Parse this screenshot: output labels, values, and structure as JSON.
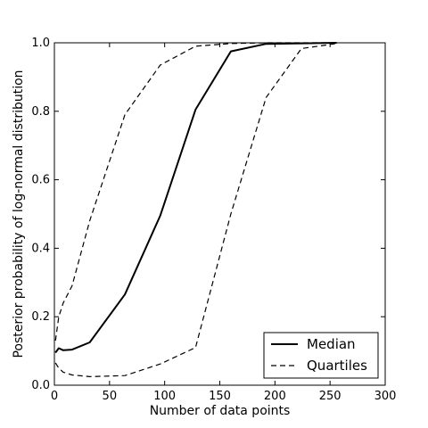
{
  "chart_data": {
    "type": "line",
    "xlabel": "Number of data points",
    "ylabel": "Posterior probability of log-normal distribution",
    "xlim": [
      0,
      300
    ],
    "ylim": [
      0,
      1.0
    ],
    "x_ticks": [
      0,
      50,
      100,
      150,
      200,
      250,
      300
    ],
    "x_tick_labels": [
      "0",
      "50",
      "100",
      "150",
      "200",
      "250",
      "300"
    ],
    "y_ticks": [
      0.0,
      0.2,
      0.4,
      0.6,
      0.8,
      1.0
    ],
    "y_tick_labels": [
      "0.0",
      "0.2",
      "0.4",
      "0.6",
      "0.8",
      "1.0"
    ],
    "grid": false,
    "legend_position": "bottom-right",
    "series": [
      {
        "name": "Median",
        "style": "solid",
        "color": "#000000",
        "x": [
          1,
          4,
          8,
          16,
          32,
          64,
          96,
          128,
          160,
          192,
          256
        ],
        "y": [
          0.095,
          0.108,
          0.102,
          0.104,
          0.125,
          0.265,
          0.495,
          0.805,
          0.975,
          0.997,
          1.0
        ]
      },
      {
        "name": "Quartiles",
        "style": "dashed",
        "color": "#000000",
        "x": [
          1,
          4,
          8,
          16,
          32,
          64,
          96,
          128,
          160,
          192,
          256
        ],
        "y": [
          0.13,
          0.2,
          0.24,
          0.29,
          0.48,
          0.79,
          0.935,
          0.99,
          0.998,
          1.0,
          1.0
        ]
      },
      {
        "name": "",
        "style": "dashed",
        "color": "#000000",
        "x": [
          1,
          4,
          8,
          16,
          32,
          64,
          96,
          128,
          160,
          192,
          224,
          256
        ],
        "y": [
          0.065,
          0.05,
          0.038,
          0.03,
          0.025,
          0.028,
          0.062,
          0.11,
          0.5,
          0.84,
          0.983,
          0.998
        ]
      }
    ]
  }
}
